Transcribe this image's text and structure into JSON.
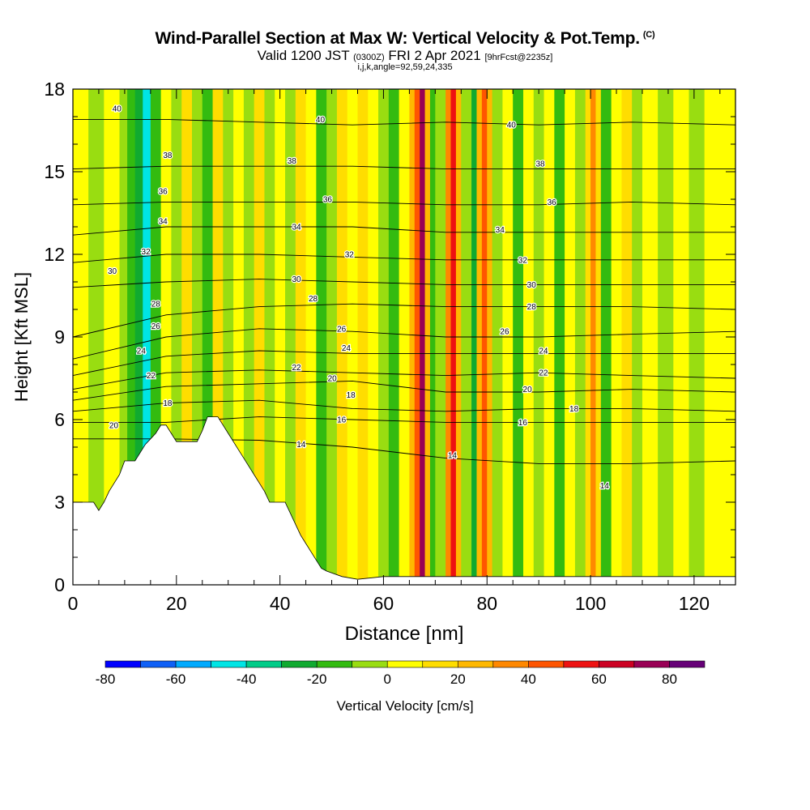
{
  "header": {
    "title": "Wind-Parallel Section at Max W: Vertical Velocity & Pot.Temp.",
    "title_mark": "(C)",
    "subtitle_main": "Valid 1200 JST",
    "subtitle_utc": "(0300Z)",
    "subtitle_date": "FRI 2 Apr 2021",
    "subtitle_fcst": "[9hrFcst@2235z]",
    "params": "i,j,k,angle=92,59,24,335"
  },
  "chart_data": {
    "type": "heatmap",
    "title": "Wind-Parallel Section at Max W: Vertical Velocity & Pot.Temp.",
    "xlabel": "Distance [nm]",
    "ylabel": "Height [Kft MSL]",
    "xlim": [
      0,
      128
    ],
    "ylim": [
      0,
      18
    ],
    "x_ticks": [
      "0",
      "20",
      "40",
      "60",
      "80",
      "100",
      "120"
    ],
    "y_ticks": [
      "0",
      "3",
      "6",
      "9",
      "12",
      "15",
      "18"
    ],
    "colorbar": {
      "label": "Vertical Velocity [cm/s]",
      "range": [
        -80,
        90
      ],
      "tick_labels": [
        "-80",
        "-60",
        "-40",
        "-20",
        "0",
        "20",
        "40",
        "60",
        "80"
      ],
      "tick_values": [
        -80,
        -60,
        -40,
        -20,
        0,
        20,
        40,
        60,
        80
      ],
      "colors": [
        "#0000ff",
        "#0f60f6",
        "#00aaff",
        "#00e5e5",
        "#00cc88",
        "#10aa30",
        "#33bb10",
        "#99dd11",
        "#ffff00",
        "#ffdd00",
        "#ffb800",
        "#ff8800",
        "#ff5500",
        "#ee1111",
        "#cc0022",
        "#990055",
        "#660077"
      ]
    },
    "terrain_kft": [
      [
        0,
        3.0
      ],
      [
        2,
        3.0
      ],
      [
        4,
        3.0
      ],
      [
        5,
        2.7
      ],
      [
        6,
        3.0
      ],
      [
        7,
        3.4
      ],
      [
        8,
        3.7
      ],
      [
        9,
        4.0
      ],
      [
        10,
        4.5
      ],
      [
        11,
        4.5
      ],
      [
        12,
        4.5
      ],
      [
        13,
        4.8
      ],
      [
        14,
        5.1
      ],
      [
        15,
        5.3
      ],
      [
        16,
        5.5
      ],
      [
        17,
        5.8
      ],
      [
        18,
        5.8
      ],
      [
        19,
        5.5
      ],
      [
        20,
        5.2
      ],
      [
        22,
        5.2
      ],
      [
        24,
        5.2
      ],
      [
        25,
        5.6
      ],
      [
        26,
        6.1
      ],
      [
        28,
        6.1
      ],
      [
        29,
        5.8
      ],
      [
        30,
        5.5
      ],
      [
        31,
        5.2
      ],
      [
        32,
        4.9
      ],
      [
        33,
        4.6
      ],
      [
        34,
        4.3
      ],
      [
        35,
        4.0
      ],
      [
        36,
        3.7
      ],
      [
        37,
        3.4
      ],
      [
        38,
        3.0
      ],
      [
        39,
        3.0
      ],
      [
        41,
        3.0
      ],
      [
        42,
        2.6
      ],
      [
        43,
        2.2
      ],
      [
        44,
        1.8
      ],
      [
        45,
        1.5
      ],
      [
        46,
        1.2
      ],
      [
        47,
        0.9
      ],
      [
        48,
        0.6
      ],
      [
        49,
        0.5
      ],
      [
        52,
        0.3
      ],
      [
        55,
        0.2
      ],
      [
        60,
        0.3
      ],
      [
        128,
        0.3
      ]
    ],
    "shading_columns": [
      {
        "x": [
          0,
          3
        ],
        "v": 8
      },
      {
        "x": [
          3,
          6
        ],
        "v": -8
      },
      {
        "x": [
          6,
          9
        ],
        "v": 4
      },
      {
        "x": [
          9,
          10.5
        ],
        "v": -6
      },
      {
        "x": [
          10.5,
          12
        ],
        "v": -15
      },
      {
        "x": [
          12,
          13.5
        ],
        "v": -28
      },
      {
        "x": [
          13.5,
          15
        ],
        "v": -45
      },
      {
        "x": [
          15,
          17
        ],
        "v": -18
      },
      {
        "x": [
          17,
          19
        ],
        "v": 6
      },
      {
        "x": [
          19,
          21
        ],
        "v": -10
      },
      {
        "x": [
          21,
          23
        ],
        "v": 12
      },
      {
        "x": [
          23,
          25
        ],
        "v": -6
      },
      {
        "x": [
          25,
          27
        ],
        "v": -14
      },
      {
        "x": [
          27,
          29
        ],
        "v": 16
      },
      {
        "x": [
          29,
          31
        ],
        "v": -4
      },
      {
        "x": [
          31,
          33
        ],
        "v": 6
      },
      {
        "x": [
          33,
          35
        ],
        "v": -2
      },
      {
        "x": [
          35,
          37
        ],
        "v": 10
      },
      {
        "x": [
          37,
          39
        ],
        "v": -4
      },
      {
        "x": [
          39,
          41
        ],
        "v": 8
      },
      {
        "x": [
          41,
          43
        ],
        "v": -8
      },
      {
        "x": [
          43,
          45
        ],
        "v": 14
      },
      {
        "x": [
          45,
          47
        ],
        "v": 4
      },
      {
        "x": [
          47,
          49
        ],
        "v": -20
      },
      {
        "x": [
          49,
          51
        ],
        "v": -4
      },
      {
        "x": [
          51,
          53
        ],
        "v": 12
      },
      {
        "x": [
          53,
          55
        ],
        "v": 6
      },
      {
        "x": [
          55,
          57
        ],
        "v": 14
      },
      {
        "x": [
          57,
          59
        ],
        "v": 4
      },
      {
        "x": [
          59,
          61
        ],
        "v": -10
      },
      {
        "x": [
          61,
          63
        ],
        "v": -14
      },
      {
        "x": [
          63,
          65
        ],
        "v": 4
      },
      {
        "x": [
          65,
          66
        ],
        "v": 20
      },
      {
        "x": [
          66,
          67
        ],
        "v": 48
      },
      {
        "x": [
          67,
          68
        ],
        "v": 78
      },
      {
        "x": [
          68,
          69
        ],
        "v": 26
      },
      {
        "x": [
          69,
          70
        ],
        "v": -12
      },
      {
        "x": [
          70,
          72
        ],
        "v": -8
      },
      {
        "x": [
          72,
          73
        ],
        "v": 30
      },
      {
        "x": [
          73,
          74
        ],
        "v": 55
      },
      {
        "x": [
          74,
          75
        ],
        "v": 22
      },
      {
        "x": [
          75,
          77
        ],
        "v": -10
      },
      {
        "x": [
          77,
          78
        ],
        "v": -26
      },
      {
        "x": [
          78,
          79
        ],
        "v": 24
      },
      {
        "x": [
          79,
          80
        ],
        "v": 46
      },
      {
        "x": [
          80,
          81
        ],
        "v": 20
      },
      {
        "x": [
          81,
          83
        ],
        "v": -6
      },
      {
        "x": [
          83,
          85
        ],
        "v": 6
      },
      {
        "x": [
          85,
          87
        ],
        "v": -16
      },
      {
        "x": [
          87,
          89
        ],
        "v": 2
      },
      {
        "x": [
          89,
          91
        ],
        "v": -10
      },
      {
        "x": [
          91,
          93
        ],
        "v": 6
      },
      {
        "x": [
          93,
          95
        ],
        "v": -12
      },
      {
        "x": [
          95,
          97
        ],
        "v": 4
      },
      {
        "x": [
          97,
          99
        ],
        "v": -6
      },
      {
        "x": [
          99,
          100
        ],
        "v": 18
      },
      {
        "x": [
          100,
          101
        ],
        "v": 38
      },
      {
        "x": [
          101,
          102
        ],
        "v": 12
      },
      {
        "x": [
          102,
          104
        ],
        "v": -12
      },
      {
        "x": [
          104,
          106
        ],
        "v": 4
      },
      {
        "x": [
          106,
          108
        ],
        "v": 14
      },
      {
        "x": [
          108,
          110
        ],
        "v": -4
      },
      {
        "x": [
          110,
          113
        ],
        "v": 8
      },
      {
        "x": [
          113,
          116
        ],
        "v": -2
      },
      {
        "x": [
          116,
          119
        ],
        "v": 8
      },
      {
        "x": [
          119,
          122
        ],
        "v": -4
      },
      {
        "x": [
          122,
          125
        ],
        "v": 6
      },
      {
        "x": [
          125,
          128
        ],
        "v": 1
      }
    ],
    "theta_contours": [
      {
        "label": "14",
        "y": [
          5.3,
          5.3,
          5.25,
          5.0,
          4.6,
          4.4,
          4.4,
          4.5
        ]
      },
      {
        "label": "16",
        "y": [
          5.9,
          5.9,
          6.1,
          6.0,
          5.9,
          5.9,
          5.9,
          5.9
        ]
      },
      {
        "label": "18",
        "y": [
          6.3,
          6.6,
          6.7,
          6.4,
          6.3,
          6.4,
          6.4,
          6.3
        ]
      },
      {
        "label": "20",
        "y": [
          6.7,
          7.2,
          7.3,
          7.4,
          7.0,
          7.0,
          7.1,
          7.0
        ]
      },
      {
        "label": "22",
        "y": [
          7.1,
          7.7,
          7.8,
          7.7,
          7.6,
          7.7,
          7.6,
          7.5
        ]
      },
      {
        "label": "24",
        "y": [
          7.6,
          8.3,
          8.5,
          8.4,
          8.4,
          8.4,
          8.4,
          8.4
        ]
      },
      {
        "label": "26",
        "y": [
          8.2,
          9.0,
          9.3,
          9.2,
          9.0,
          9.0,
          9.1,
          9.2
        ]
      },
      {
        "label": "28",
        "y": [
          9.0,
          9.8,
          10.1,
          10.2,
          10.1,
          10.1,
          10.1,
          10.0
        ]
      },
      {
        "label": "30",
        "y": [
          10.8,
          11.0,
          11.1,
          11.0,
          10.9,
          10.9,
          10.9,
          10.9
        ]
      },
      {
        "label": "32",
        "y": [
          11.7,
          12.0,
          12.0,
          11.9,
          11.8,
          11.8,
          11.8,
          11.8
        ]
      },
      {
        "label": "34",
        "y": [
          12.7,
          13.0,
          13.0,
          13.0,
          12.8,
          12.8,
          12.8,
          12.8
        ]
      },
      {
        "label": "36",
        "y": [
          13.8,
          13.9,
          13.9,
          13.9,
          13.8,
          13.8,
          13.9,
          13.8
        ]
      },
      {
        "label": "38",
        "y": [
          15.1,
          15.2,
          15.2,
          15.2,
          15.1,
          15.1,
          15.1,
          15.1
        ]
      },
      {
        "label": "40",
        "y": [
          16.9,
          16.9,
          16.8,
          16.7,
          16.8,
          16.7,
          16.8,
          16.7
        ]
      }
    ],
    "theta_contour_x": [
      0,
      18,
      36,
      54,
      72,
      90,
      108,
      128
    ],
    "contour_labels": [
      {
        "text": "40",
        "x": 8.5,
        "y": 17.3
      },
      {
        "text": "40",
        "x": 47.8,
        "y": 16.9
      },
      {
        "text": "40",
        "x": 84.7,
        "y": 16.7
      },
      {
        "text": "38",
        "x": 18.3,
        "y": 15.6
      },
      {
        "text": "38",
        "x": 42.3,
        "y": 15.4
      },
      {
        "text": "38",
        "x": 90.3,
        "y": 15.3
      },
      {
        "text": "36",
        "x": 17.4,
        "y": 14.3
      },
      {
        "text": "36",
        "x": 49.2,
        "y": 14.0
      },
      {
        "text": "36",
        "x": 92.5,
        "y": 13.9
      },
      {
        "text": "34",
        "x": 17.4,
        "y": 13.2
      },
      {
        "text": "34",
        "x": 43.2,
        "y": 13.0
      },
      {
        "text": "34",
        "x": 82.5,
        "y": 12.9
      },
      {
        "text": "32",
        "x": 14.1,
        "y": 12.1
      },
      {
        "text": "32",
        "x": 53.4,
        "y": 12.0
      },
      {
        "text": "32",
        "x": 86.9,
        "y": 11.8
      },
      {
        "text": "30",
        "x": 7.6,
        "y": 11.4
      },
      {
        "text": "30",
        "x": 43.2,
        "y": 11.1
      },
      {
        "text": "30",
        "x": 88.6,
        "y": 10.9
      },
      {
        "text": "28",
        "x": 16.0,
        "y": 10.2
      },
      {
        "text": "28",
        "x": 46.4,
        "y": 10.4
      },
      {
        "text": "28",
        "x": 88.6,
        "y": 10.1
      },
      {
        "text": "26",
        "x": 16.0,
        "y": 9.4
      },
      {
        "text": "26",
        "x": 51.9,
        "y": 9.3
      },
      {
        "text": "26",
        "x": 83.4,
        "y": 9.2
      },
      {
        "text": "24",
        "x": 13.2,
        "y": 8.5
      },
      {
        "text": "24",
        "x": 52.8,
        "y": 8.6
      },
      {
        "text": "24",
        "x": 90.9,
        "y": 8.5
      },
      {
        "text": "22",
        "x": 15.1,
        "y": 7.6
      },
      {
        "text": "22",
        "x": 43.2,
        "y": 7.9
      },
      {
        "text": "22",
        "x": 90.9,
        "y": 7.7
      },
      {
        "text": "20",
        "x": 50.1,
        "y": 7.5
      },
      {
        "text": "20",
        "x": 87.8,
        "y": 7.1
      },
      {
        "text": "20",
        "x": 7.9,
        "y": 5.8
      },
      {
        "text": "18",
        "x": 18.3,
        "y": 6.6
      },
      {
        "text": "18",
        "x": 53.7,
        "y": 6.9
      },
      {
        "text": "18",
        "x": 96.8,
        "y": 6.4
      },
      {
        "text": "16",
        "x": 51.9,
        "y": 6.0
      },
      {
        "text": "16",
        "x": 86.9,
        "y": 5.9
      },
      {
        "text": "14",
        "x": 44.1,
        "y": 5.1
      },
      {
        "text": "14",
        "x": 73.3,
        "y": 4.7
      },
      {
        "text": "14",
        "x": 102.7,
        "y": 3.6
      }
    ]
  }
}
